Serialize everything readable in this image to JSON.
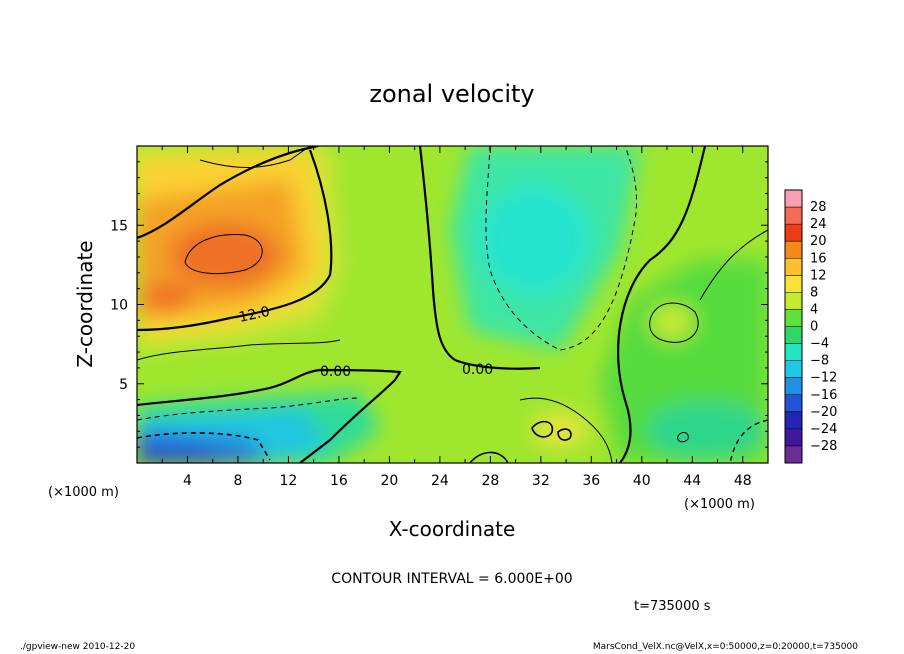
{
  "chart_data": {
    "type": "heatmap",
    "title": "zonal velocity",
    "xlabel": "X-coordinate",
    "ylabel": "Z-coordinate",
    "x_unit": "(×1000 m)",
    "y_unit": "(×1000 m)",
    "xlim": [
      0,
      50
    ],
    "ylim": [
      0,
      20
    ],
    "xticks": [
      "4",
      "8",
      "12",
      "16",
      "20",
      "24",
      "28",
      "32",
      "36",
      "40",
      "44",
      "48"
    ],
    "yticks": [
      "5",
      "10",
      "15"
    ],
    "colorbar": {
      "labels": [
        "28",
        "24",
        "20",
        "16",
        "12",
        "8",
        "4",
        "0",
        "−4",
        "−8",
        "−12",
        "−16",
        "−20",
        "−24",
        "−28"
      ],
      "colors": [
        "#f9a0b4",
        "#f36a56",
        "#ec3d18",
        "#f18a17",
        "#fbc12e",
        "#fae338",
        "#c4ec2d",
        "#5ee23b",
        "#2fd668",
        "#22e6c1",
        "#21c8e6",
        "#2490e4",
        "#2453d8",
        "#2325b9",
        "#40189c",
        "#6d2c95"
      ]
    },
    "contour_labels": [
      "12.0",
      "0.00",
      "0.00"
    ],
    "contour_interval": "CONTOUR INTERVAL = 6.000E+00",
    "time_label": "t=735000 s",
    "footer_left": "./gpview-new   2010-12-20",
    "footer_right": "MarsCond_VelX.nc@VelX,x=0:50000,z=0:20000,t=735000"
  }
}
